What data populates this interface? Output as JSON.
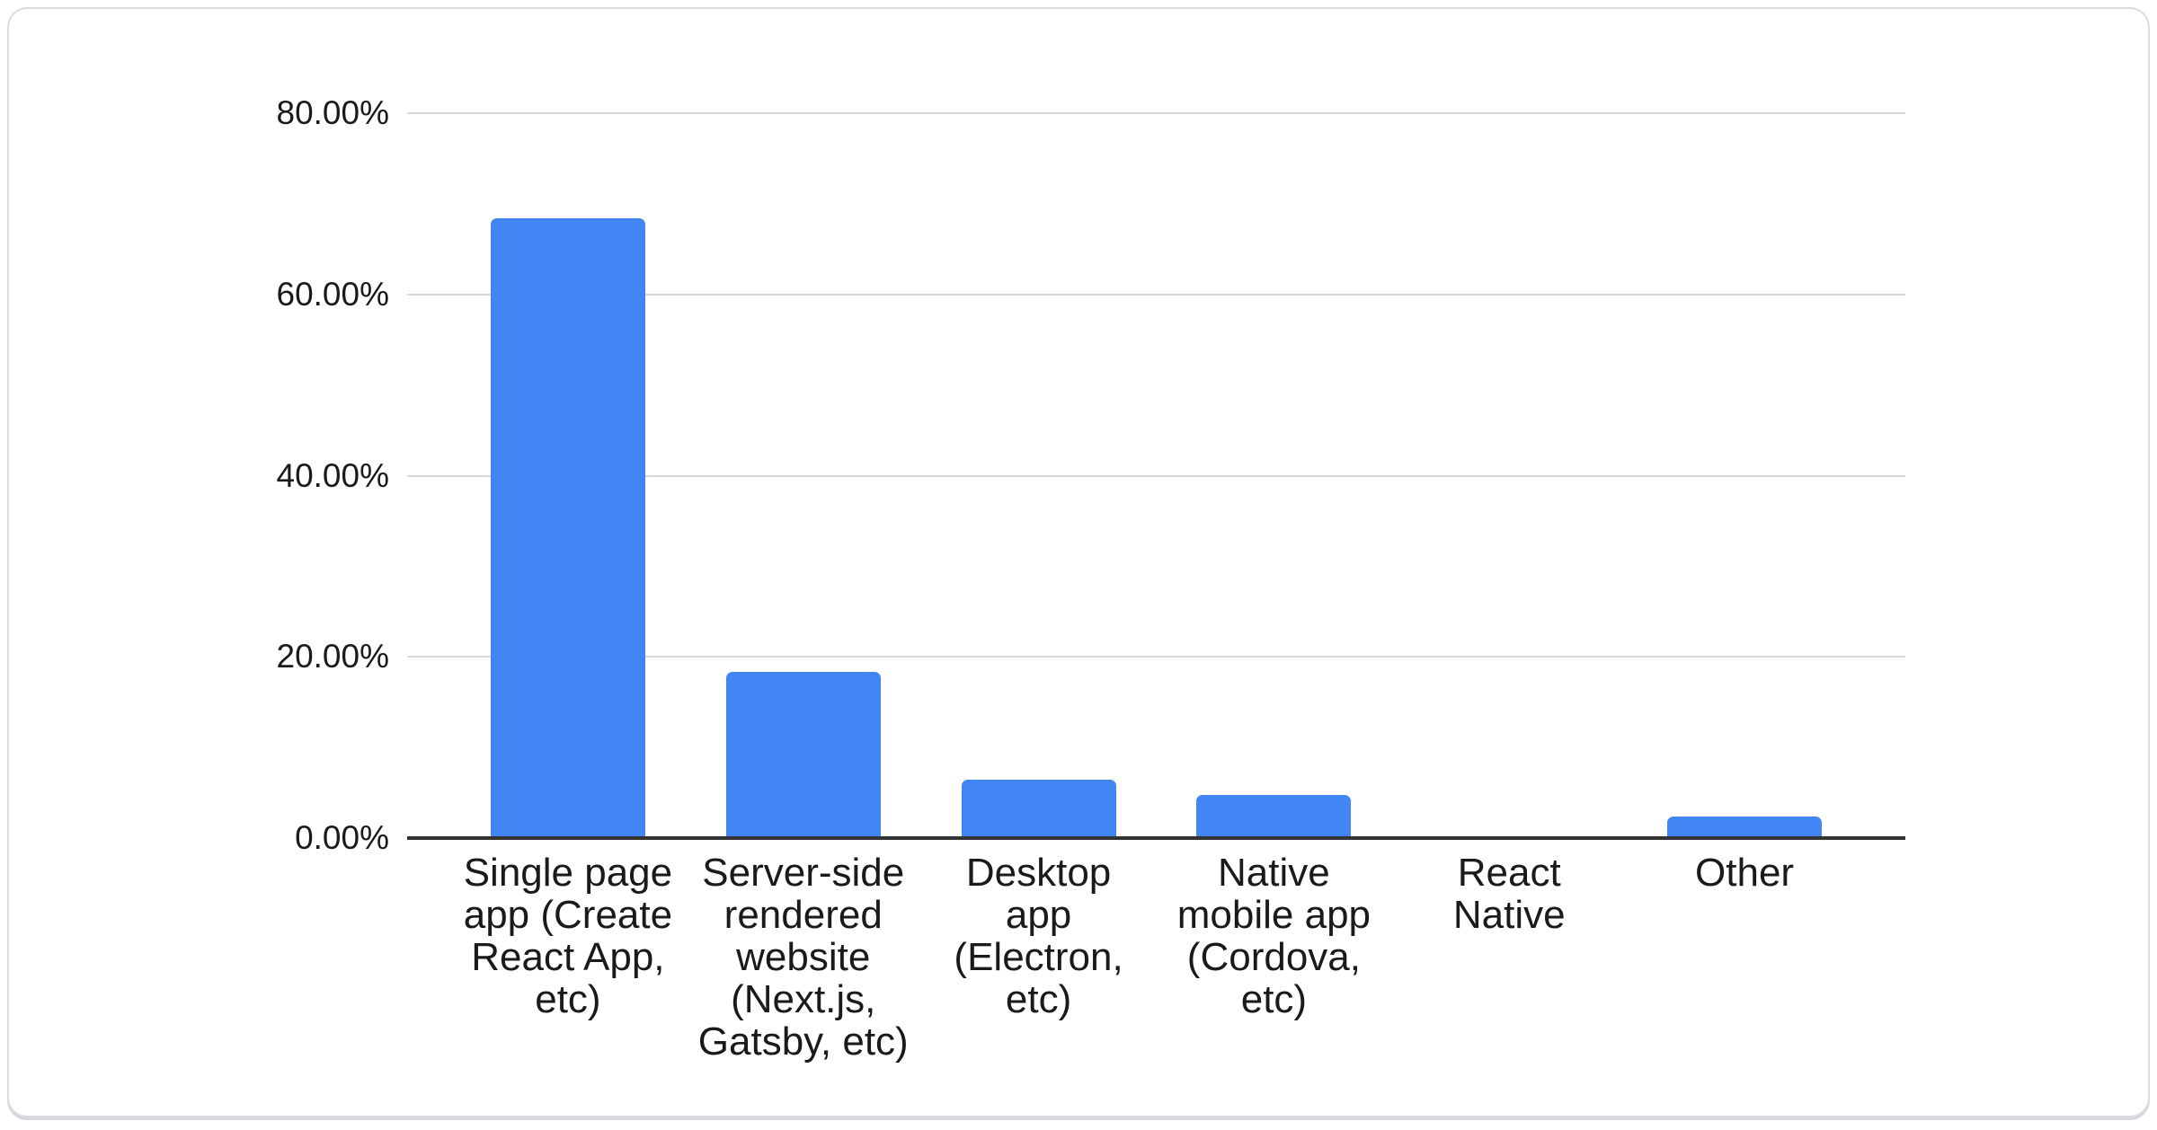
{
  "card": {
    "background": "#ffffff",
    "border_color": "#dadce0"
  },
  "chart_data": {
    "type": "bar",
    "title": "",
    "xlabel": "",
    "ylabel": "",
    "categories": [
      "Single page app (Create React App, etc)",
      "Server-side rendered website (Next.js, Gatsby, etc)",
      "Desktop app (Electron, etc)",
      "Native mobile app (Cordova, etc)",
      "React Native",
      "Other"
    ],
    "category_lines": [
      [
        "Single page",
        "app (Create",
        "React App,",
        "etc)"
      ],
      [
        "Server-side",
        "rendered",
        "website",
        "(Next.js,",
        "Gatsby, etc)"
      ],
      [
        "Desktop",
        "app",
        "(Electron,",
        "etc)"
      ],
      [
        "Native",
        "mobile app",
        "(Cordova,",
        "etc)"
      ],
      [
        "React",
        "Native"
      ],
      [
        "Other"
      ]
    ],
    "values": [
      68.4,
      18.3,
      6.4,
      4.8,
      0.0,
      2.4
    ],
    "unit": "%",
    "ylim": [
      0,
      80
    ],
    "yticks": [
      {
        "value": 80,
        "label": "80.00%"
      },
      {
        "value": 60,
        "label": "60.00%"
      },
      {
        "value": 40,
        "label": "40.00%"
      },
      {
        "value": 20,
        "label": "20.00%"
      },
      {
        "value": 0,
        "label": "0.00%"
      }
    ],
    "grid": true,
    "legend": "none",
    "colors": {
      "bar": "#4285f4",
      "gridline": "#d9d9d9",
      "baseline": "#333333",
      "tick_text": "#1a1a1a",
      "category_text": "#1a1a1a"
    }
  }
}
